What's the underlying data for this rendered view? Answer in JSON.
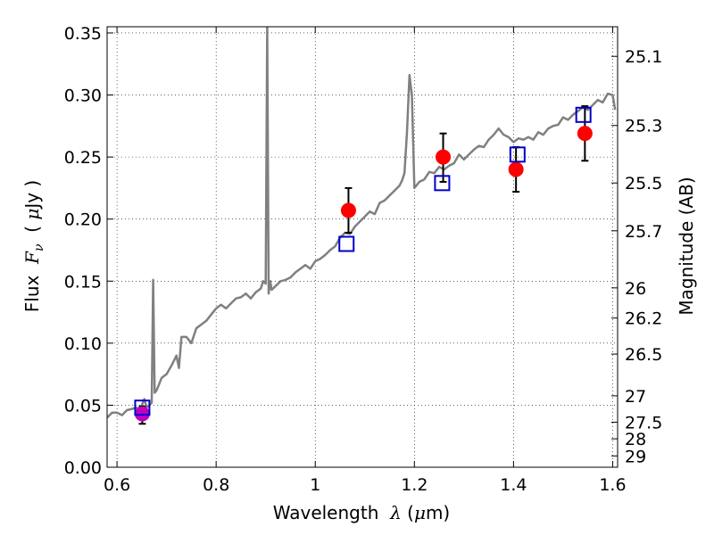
{
  "chart_data": {
    "type": "scatter",
    "xlabel": {
      "prefix": "Wavelength  ",
      "symbol": "λ",
      "suffix_pre": " (",
      "mu": "μ",
      "unit": "m)"
    },
    "ylabel": {
      "prefix": "Flux  ",
      "symbol": "F",
      "sub": "ν",
      "suffix_pre": "  ( ",
      "mu": "μ",
      "unit": "Jy )"
    },
    "y2label": "Magnitude (AB)",
    "xlim": [
      0.58,
      1.61
    ],
    "ylim": [
      0.0,
      0.355
    ],
    "x_ticks": [
      0.6,
      0.8,
      1.0,
      1.2,
      1.4,
      1.6
    ],
    "x_tick_labels": [
      "0.6",
      "0.8",
      "1",
      "1.2",
      "1.4",
      "1.6"
    ],
    "y_ticks": [
      0.0,
      0.05,
      0.1,
      0.15,
      0.2,
      0.25,
      0.3,
      0.35
    ],
    "y_tick_labels": [
      "0.00",
      "0.05",
      "0.10",
      "0.15",
      "0.20",
      "0.25",
      "0.30",
      "0.35"
    ],
    "mag_ticks": [
      25.1,
      25.3,
      25.5,
      25.7,
      26,
      26.2,
      26.5,
      27,
      27.5,
      28,
      29
    ],
    "mag_tick_labels": [
      "25.1",
      "25.3",
      "25.5",
      "25.7",
      "26",
      "26.2",
      "26.5",
      "27",
      "27.5",
      "28",
      "29"
    ],
    "grid": true,
    "series": [
      {
        "kind": "line",
        "color": "#808080",
        "x": [
          0.58,
          0.59,
          0.6,
          0.61,
          0.62,
          0.63,
          0.64,
          0.645,
          0.65,
          0.655,
          0.66,
          0.665,
          0.67,
          0.673,
          0.676,
          0.68,
          0.69,
          0.7,
          0.71,
          0.72,
          0.725,
          0.73,
          0.74,
          0.75,
          0.76,
          0.77,
          0.78,
          0.79,
          0.8,
          0.81,
          0.82,
          0.83,
          0.84,
          0.85,
          0.86,
          0.87,
          0.88,
          0.89,
          0.895,
          0.9,
          0.903,
          0.906,
          0.909,
          0.912,
          0.92,
          0.93,
          0.94,
          0.95,
          0.96,
          0.97,
          0.98,
          0.99,
          1.0,
          1.01,
          1.02,
          1.03,
          1.04,
          1.05,
          1.06,
          1.07,
          1.08,
          1.09,
          1.1,
          1.11,
          1.12,
          1.13,
          1.14,
          1.15,
          1.16,
          1.17,
          1.175,
          1.18,
          1.185,
          1.19,
          1.195,
          1.2,
          1.21,
          1.22,
          1.23,
          1.24,
          1.25,
          1.26,
          1.27,
          1.28,
          1.29,
          1.3,
          1.31,
          1.32,
          1.33,
          1.34,
          1.35,
          1.36,
          1.37,
          1.38,
          1.39,
          1.4,
          1.41,
          1.42,
          1.43,
          1.44,
          1.45,
          1.46,
          1.47,
          1.48,
          1.49,
          1.5,
          1.51,
          1.52,
          1.53,
          1.54,
          1.55,
          1.56,
          1.57,
          1.58,
          1.59,
          1.6,
          1.605
        ],
        "y": [
          0.04,
          0.044,
          0.044,
          0.042,
          0.046,
          0.047,
          0.048,
          0.046,
          0.05,
          0.055,
          0.048,
          0.05,
          0.052,
          0.151,
          0.06,
          0.062,
          0.072,
          0.075,
          0.082,
          0.09,
          0.08,
          0.105,
          0.105,
          0.1,
          0.112,
          0.115,
          0.118,
          0.123,
          0.128,
          0.131,
          0.128,
          0.132,
          0.136,
          0.137,
          0.14,
          0.136,
          0.141,
          0.144,
          0.15,
          0.148,
          0.355,
          0.14,
          0.15,
          0.143,
          0.146,
          0.15,
          0.151,
          0.153,
          0.157,
          0.16,
          0.163,
          0.16,
          0.166,
          0.168,
          0.171,
          0.175,
          0.178,
          0.185,
          0.189,
          0.188,
          0.194,
          0.198,
          0.202,
          0.206,
          0.204,
          0.213,
          0.215,
          0.219,
          0.223,
          0.227,
          0.231,
          0.237,
          0.27,
          0.316,
          0.3,
          0.225,
          0.23,
          0.232,
          0.238,
          0.237,
          0.242,
          0.24,
          0.243,
          0.245,
          0.252,
          0.248,
          0.252,
          0.256,
          0.259,
          0.258,
          0.264,
          0.268,
          0.273,
          0.268,
          0.266,
          0.262,
          0.265,
          0.264,
          0.266,
          0.264,
          0.27,
          0.268,
          0.273,
          0.275,
          0.276,
          0.282,
          0.28,
          0.284,
          0.287,
          0.29,
          0.288,
          0.292,
          0.296,
          0.294,
          0.301,
          0.3,
          0.288
        ]
      },
      {
        "kind": "errorbar",
        "color": "#000000",
        "points": [
          {
            "x": 0.651,
            "lo": 0.035,
            "hi": 0.049
          },
          {
            "x": 1.067,
            "lo": 0.189,
            "hi": 0.225
          },
          {
            "x": 1.258,
            "lo": 0.23,
            "hi": 0.269
          },
          {
            "x": 1.405,
            "lo": 0.222,
            "hi": 0.258
          },
          {
            "x": 1.544,
            "lo": 0.247,
            "hi": 0.291
          }
        ]
      },
      {
        "kind": "points-filled",
        "points": [
          {
            "x": 0.651,
            "y": 0.043,
            "color": "#c000c0"
          },
          {
            "x": 1.067,
            "y": 0.207,
            "color": "#ff0000"
          },
          {
            "x": 1.258,
            "y": 0.25,
            "color": "#ff0000"
          },
          {
            "x": 1.405,
            "y": 0.24,
            "color": "#ff0000"
          },
          {
            "x": 1.544,
            "y": 0.269,
            "color": "#ff0000"
          }
        ]
      },
      {
        "kind": "points-square",
        "color": "#0000cc",
        "points": [
          {
            "x": 0.651,
            "y": 0.048
          },
          {
            "x": 1.063,
            "y": 0.18
          },
          {
            "x": 1.256,
            "y": 0.229
          },
          {
            "x": 1.408,
            "y": 0.252
          },
          {
            "x": 1.541,
            "y": 0.284
          }
        ]
      }
    ]
  }
}
